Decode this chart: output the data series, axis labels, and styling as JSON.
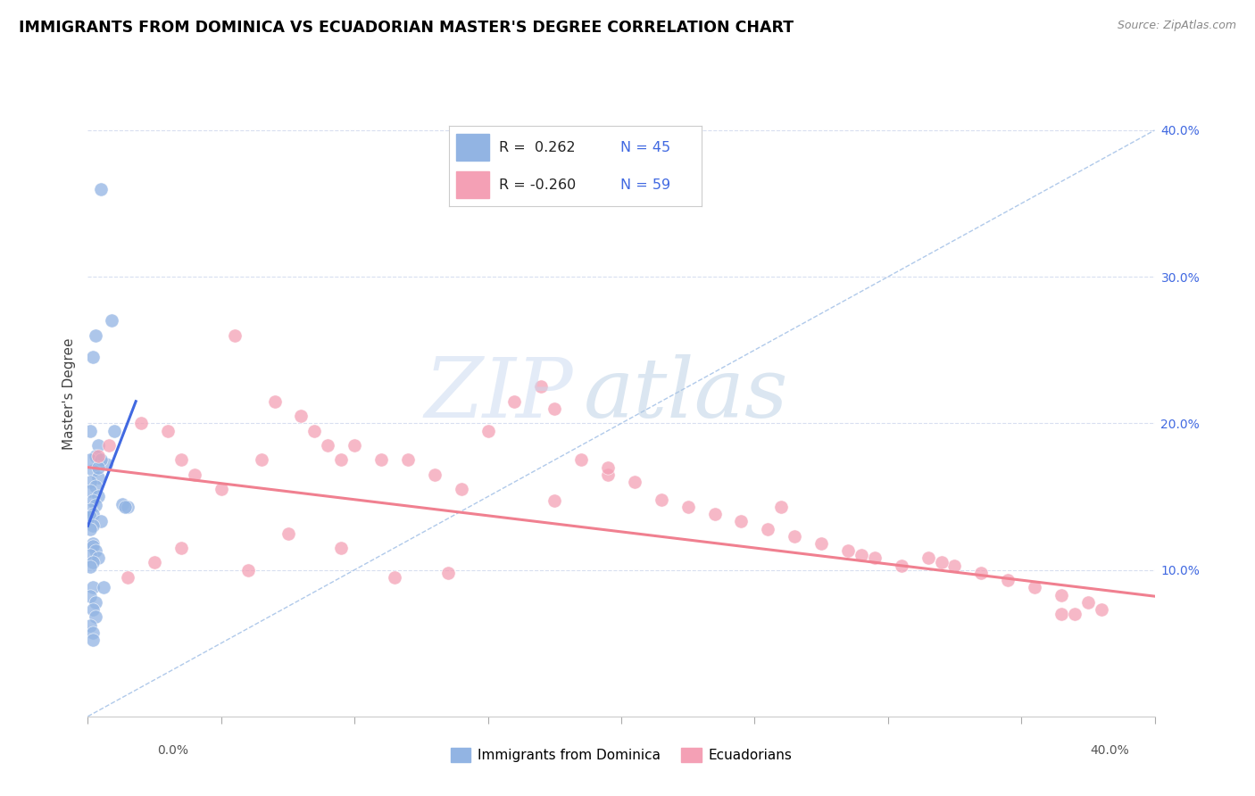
{
  "title": "IMMIGRANTS FROM DOMINICA VS ECUADORIAN MASTER'S DEGREE CORRELATION CHART",
  "source": "Source: ZipAtlas.com",
  "ylabel": "Master's Degree",
  "legend_label_blue": "Immigrants from Dominica",
  "legend_label_pink": "Ecuadorians",
  "right_ytick_labels": [
    "10.0%",
    "20.0%",
    "30.0%",
    "40.0%"
  ],
  "right_ytick_values": [
    0.1,
    0.2,
    0.3,
    0.4
  ],
  "xlim": [
    0.0,
    0.4
  ],
  "ylim": [
    0.0,
    0.44
  ],
  "blue_color": "#92b4e3",
  "pink_color": "#f4a0b5",
  "blue_line_color": "#4169e1",
  "pink_line_color": "#f08090",
  "dashed_line_color": "#a8c4e8",
  "grid_color": "#d8dff0",
  "watermark_zip_color": "#c8d8f0",
  "watermark_atlas_color": "#b0c8e0",
  "blue_scatter_x": [
    0.005,
    0.009,
    0.003,
    0.002,
    0.001,
    0.004,
    0.003,
    0.007,
    0.002,
    0.004,
    0.001,
    0.003,
    0.001,
    0.004,
    0.002,
    0.003,
    0.001,
    0.002,
    0.001,
    0.005,
    0.002,
    0.001,
    0.001,
    0.005,
    0.004,
    0.01,
    0.013,
    0.015,
    0.014,
    0.002,
    0.002,
    0.003,
    0.001,
    0.004,
    0.002,
    0.001,
    0.002,
    0.001,
    0.003,
    0.002,
    0.003,
    0.001,
    0.002,
    0.006,
    0.002
  ],
  "blue_scatter_y": [
    0.36,
    0.27,
    0.26,
    0.245,
    0.195,
    0.185,
    0.178,
    0.172,
    0.168,
    0.163,
    0.16,
    0.157,
    0.154,
    0.15,
    0.147,
    0.144,
    0.141,
    0.138,
    0.136,
    0.133,
    0.13,
    0.128,
    0.175,
    0.175,
    0.17,
    0.195,
    0.145,
    0.143,
    0.143,
    0.118,
    0.116,
    0.113,
    0.11,
    0.108,
    0.105,
    0.102,
    0.088,
    0.082,
    0.078,
    0.073,
    0.068,
    0.062,
    0.057,
    0.088,
    0.052
  ],
  "pink_scatter_x": [
    0.004,
    0.008,
    0.02,
    0.03,
    0.035,
    0.04,
    0.05,
    0.055,
    0.065,
    0.07,
    0.08,
    0.085,
    0.09,
    0.095,
    0.1,
    0.11,
    0.12,
    0.13,
    0.14,
    0.15,
    0.16,
    0.17,
    0.175,
    0.185,
    0.195,
    0.205,
    0.215,
    0.225,
    0.235,
    0.245,
    0.255,
    0.265,
    0.275,
    0.285,
    0.295,
    0.305,
    0.315,
    0.325,
    0.335,
    0.345,
    0.355,
    0.365,
    0.375,
    0.38,
    0.015,
    0.025,
    0.035,
    0.075,
    0.115,
    0.175,
    0.26,
    0.32,
    0.365,
    0.06,
    0.095,
    0.135,
    0.195,
    0.29,
    0.37
  ],
  "pink_scatter_y": [
    0.178,
    0.185,
    0.2,
    0.195,
    0.175,
    0.165,
    0.155,
    0.26,
    0.175,
    0.215,
    0.205,
    0.195,
    0.185,
    0.175,
    0.185,
    0.175,
    0.175,
    0.165,
    0.155,
    0.195,
    0.215,
    0.225,
    0.21,
    0.175,
    0.165,
    0.16,
    0.148,
    0.143,
    0.138,
    0.133,
    0.128,
    0.123,
    0.118,
    0.113,
    0.108,
    0.103,
    0.108,
    0.103,
    0.098,
    0.093,
    0.088,
    0.083,
    0.078,
    0.073,
    0.095,
    0.105,
    0.115,
    0.125,
    0.095,
    0.147,
    0.143,
    0.105,
    0.07,
    0.1,
    0.115,
    0.098,
    0.17,
    0.11,
    0.07
  ],
  "blue_line_x": [
    0.0,
    0.018
  ],
  "blue_line_y": [
    0.13,
    0.215
  ],
  "pink_line_x": [
    0.0,
    0.4
  ],
  "pink_line_y": [
    0.17,
    0.082
  ]
}
